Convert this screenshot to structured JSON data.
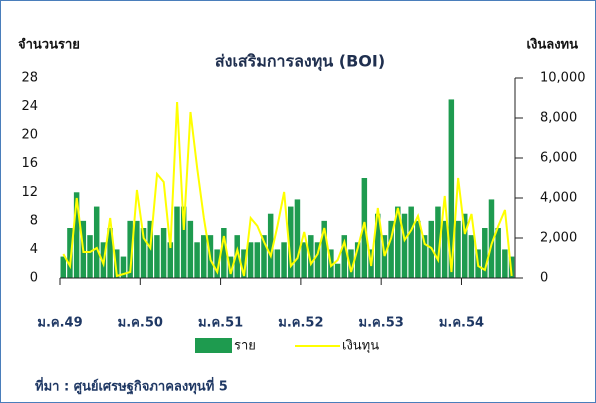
{
  "chart_data": {
    "type": "bar",
    "title": "ส่งเสริมการลงทุน (BOI)",
    "y_label": "จำนวนราย",
    "y2_label": "เงินลงทน",
    "source": "ที่มา : ศูนย์เศรษฐกิจภาคลงทุนที่ 5",
    "categories": [
      "ม.ค.49",
      null,
      null,
      null,
      null,
      null,
      null,
      null,
      null,
      null,
      null,
      null,
      "ม.ค.50",
      null,
      null,
      null,
      null,
      null,
      null,
      null,
      null,
      null,
      null,
      null,
      "ม.ค.51",
      null,
      null,
      null,
      null,
      null,
      null,
      null,
      null,
      null,
      null,
      null,
      "ม.ค.52",
      null,
      null,
      null,
      null,
      null,
      null,
      null,
      null,
      null,
      null,
      null,
      "ม.ค.53",
      null,
      null,
      null,
      null,
      null,
      null,
      null,
      null,
      null,
      null,
      null,
      "ม.ค.54",
      null,
      null,
      null,
      null,
      null,
      null,
      null
    ],
    "series": [
      {
        "name": "ราย",
        "type": "bar",
        "color": "#1e9b4f",
        "axis": "y",
        "values": [
          3,
          7,
          12,
          8,
          6,
          10,
          5,
          7,
          4,
          3,
          8,
          8,
          7,
          8,
          6,
          7,
          5,
          10,
          10,
          8,
          5,
          6,
          6,
          4,
          7,
          3,
          6,
          4,
          5,
          5,
          6,
          9,
          4,
          5,
          10,
          11,
          5,
          6,
          5,
          8,
          4,
          2,
          6,
          4,
          5,
          14,
          4,
          9,
          6,
          8,
          10,
          9,
          10,
          8,
          6,
          8,
          10,
          8,
          25,
          8,
          9,
          6,
          4,
          7,
          11,
          7,
          4,
          3
        ]
      },
      {
        "name": "เงินทุน",
        "type": "line",
        "color": "#ffff00",
        "axis": "y2",
        "values": [
          1200,
          600,
          4000,
          1300,
          1300,
          1500,
          700,
          3000,
          100,
          200,
          300,
          4400,
          2000,
          1500,
          5200,
          4800,
          1500,
          8800,
          2400,
          8300,
          5500,
          3000,
          900,
          300,
          2100,
          200,
          1400,
          100,
          3000,
          2600,
          1800,
          1100,
          2600,
          4300,
          600,
          1000,
          2300,
          700,
          1200,
          2500,
          600,
          900,
          1800,
          300,
          1500,
          2800,
          600,
          3500,
          1100,
          2000,
          3500,
          1900,
          2400,
          3100,
          1700,
          1500,
          900,
          4100,
          300,
          5000,
          2200,
          3200,
          600,
          400,
          1700,
          2600,
          3400,
          100
        ]
      }
    ],
    "ylim": [
      0,
      28
    ],
    "yticks": [
      0,
      4,
      8,
      12,
      16,
      20,
      24,
      28
    ],
    "y2lim": [
      0,
      10000
    ],
    "y2ticks": [
      0,
      {
        "value": 2000,
        "label": "2,000"
      },
      {
        "value": 4000,
        "label": "4,000"
      },
      {
        "value": 6000,
        "label": "6,000"
      },
      {
        "value": 8000,
        "label": "8,000"
      },
      {
        "value": 10000,
        "label": "10,000"
      }
    ]
  }
}
